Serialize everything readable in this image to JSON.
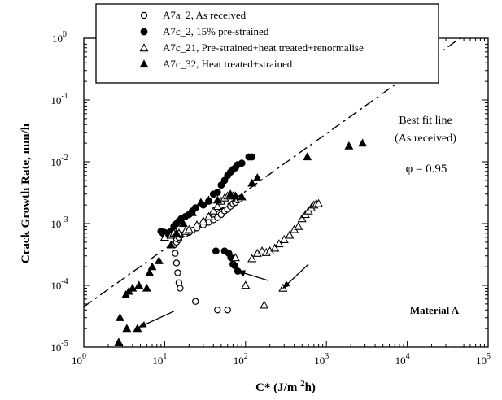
{
  "chart_data": {
    "type": "scatter",
    "x_scale": "log",
    "y_scale": "log",
    "xlim": [
      1,
      100000
    ],
    "ylim": [
      1e-05,
      1
    ],
    "xlabel": "C* (J/m 2h)",
    "ylabel": "Crack Growth Rate, mm/h",
    "x_ticks": [
      {
        "value": 1,
        "base": "10",
        "exp": "0"
      },
      {
        "value": 10,
        "base": "10",
        "exp": "1"
      },
      {
        "value": 100,
        "base": "10",
        "exp": "2"
      },
      {
        "value": 1000,
        "base": "10",
        "exp": "3"
      },
      {
        "value": 10000,
        "base": "10",
        "exp": "4"
      },
      {
        "value": 100000,
        "base": "10",
        "exp": "5"
      }
    ],
    "y_ticks": [
      {
        "value": 1e-05,
        "base": "10",
        "exp": "-5"
      },
      {
        "value": 0.0001,
        "base": "10",
        "exp": "-4"
      },
      {
        "value": 0.001,
        "base": "10",
        "exp": "-3"
      },
      {
        "value": 0.01,
        "base": "10",
        "exp": "-2"
      },
      {
        "value": 0.1,
        "base": "10",
        "exp": "-1"
      },
      {
        "value": 1,
        "base": "10",
        "exp": "0"
      }
    ],
    "legend_position": "top",
    "series": [
      {
        "name": "A7a_2, As received",
        "marker": "open-circle",
        "x": [
          13,
          13.5,
          14,
          14.5,
          15,
          15.5,
          14,
          15,
          14,
          15,
          16,
          18,
          20,
          22,
          25,
          30,
          35,
          40,
          45,
          50,
          55,
          60,
          65,
          70,
          75,
          80,
          85,
          24,
          45,
          60
        ],
        "y": [
          0.00045,
          0.00033,
          0.00023,
          0.00016,
          0.00011,
          9e-05,
          0.0005,
          0.00055,
          0.00057,
          0.0006,
          0.00065,
          0.00068,
          0.00072,
          0.00078,
          0.00085,
          0.00095,
          0.00105,
          0.00115,
          0.00125,
          0.0014,
          0.0016,
          0.0017,
          0.0019,
          0.0021,
          0.0022,
          0.0024,
          0.0025,
          5.5e-05,
          4e-05,
          4e-05
        ]
      },
      {
        "name": "A7c_2, 15% pre-strained",
        "marker": "filled-circle",
        "x": [
          9,
          9.5,
          10,
          10.5,
          11,
          12,
          13,
          14,
          15,
          16,
          18,
          20,
          22,
          24,
          30,
          35,
          40,
          45,
          50,
          55,
          60,
          65,
          70,
          75,
          80,
          90,
          110,
          120,
          43,
          55,
          62,
          66,
          70,
          73,
          80
        ],
        "y": [
          0.00075,
          0.0007,
          0.00072,
          0.00068,
          0.0007,
          0.00075,
          0.0009,
          0.001,
          0.0011,
          0.0012,
          0.0013,
          0.0014,
          0.0016,
          0.0018,
          0.002,
          0.0023,
          0.003,
          0.0032,
          0.0042,
          0.005,
          0.006,
          0.0068,
          0.0075,
          0.008,
          0.009,
          0.0095,
          0.012,
          0.012,
          0.00036,
          0.00036,
          0.00033,
          0.00028,
          0.00022,
          0.00021,
          0.00017
        ]
      },
      {
        "name": "A7c_21, Pre-strained+heat treated+renormalise",
        "marker": "open-triangle",
        "x": [
          10,
          12,
          13,
          15,
          18,
          20,
          25,
          30,
          35,
          40,
          45,
          50,
          55,
          60,
          70,
          75,
          100,
          120,
          140,
          160,
          180,
          200,
          230,
          260,
          300,
          350,
          400,
          450,
          500,
          550,
          600,
          650,
          700,
          750,
          800,
          170,
          290
        ],
        "y": [
          0.0006,
          0.00065,
          0.0007,
          0.0007,
          0.00075,
          0.0008,
          0.00095,
          0.0011,
          0.0013,
          0.0016,
          0.0019,
          0.0023,
          0.0026,
          0.0028,
          0.0028,
          0.00028,
          0.0001,
          0.00027,
          0.00033,
          0.00036,
          0.00034,
          0.00036,
          0.0004,
          0.00047,
          0.00055,
          0.00065,
          0.0008,
          0.0009,
          0.0012,
          0.0014,
          0.0016,
          0.0018,
          0.002,
          0.0021,
          0.0021,
          4.8e-05,
          9e-05
        ]
      },
      {
        "name": "A7c_32, Heat treated+strained",
        "marker": "filled-triangle",
        "x": [
          2.8,
          3.3,
          3.6,
          4,
          4.8,
          6.5,
          7,
          8.5,
          12,
          14,
          17,
          22,
          28,
          35,
          45,
          65,
          75,
          90,
          120,
          140,
          580,
          1900,
          2800,
          2.7,
          3.4,
          4.6,
          6
        ],
        "y": [
          3e-05,
          7e-05,
          8e-05,
          9e-05,
          0.0001,
          0.00016,
          0.0002,
          0.00025,
          0.00045,
          0.0007,
          0.001,
          0.0015,
          0.0022,
          0.0024,
          0.0024,
          0.003,
          0.0028,
          0.0027,
          0.0045,
          0.0055,
          0.012,
          0.018,
          0.02,
          1.2e-05,
          2e-05,
          2e-05,
          9e-05
        ]
      }
    ],
    "fit_line": {
      "label": "Best fit line (As received)",
      "style": "dash-dot",
      "exponent": 0.95,
      "x": [
        1,
        45000
      ],
      "y": [
        4.5e-05,
        1
      ]
    },
    "annotations": {
      "fit_title": "Best fit line",
      "fit_subtitle": "(As received)",
      "phi": "φ = 0.95",
      "material": "Material A"
    },
    "arrows": [
      {
        "from": [
          13,
          3.8e-05
        ],
        "to": [
          4.8,
          2.1e-05
        ]
      },
      {
        "from": [
          190,
          0.00012
        ],
        "to": [
          80,
          0.00017
        ]
      },
      {
        "from": [
          600,
          0.00022
        ],
        "to": [
          290,
          9e-05
        ]
      }
    ]
  }
}
